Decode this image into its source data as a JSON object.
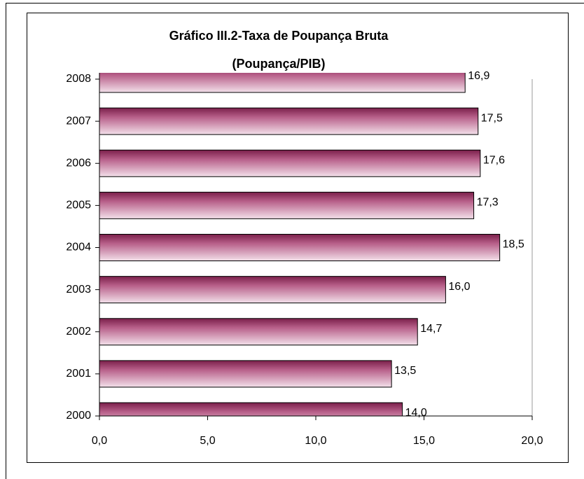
{
  "chart_data": {
    "type": "bar",
    "orientation": "horizontal",
    "title": "Gráfico III.2-Taxa de Poupança Bruta",
    "subtitle": "(Poupança/PIB)",
    "categories": [
      "2000",
      "2001",
      "2002",
      "2003",
      "2004",
      "2005",
      "2006",
      "2007",
      "2008"
    ],
    "values": [
      14.0,
      13.5,
      14.7,
      16.0,
      18.5,
      17.3,
      17.6,
      17.5,
      16.9
    ],
    "value_labels": [
      "14,0",
      "13,5",
      "14,7",
      "16,0",
      "18,5",
      "17,3",
      "17,6",
      "17,5",
      "16,9"
    ],
    "color": "#7a1f4a",
    "xlim": [
      0,
      20
    ],
    "xticks": [
      {
        "value": 0,
        "label": "0,0"
      },
      {
        "value": 5,
        "label": "5,0"
      },
      {
        "value": 10,
        "label": "10,0"
      },
      {
        "value": 15,
        "label": "15,0"
      },
      {
        "value": 20,
        "label": "20,0"
      }
    ]
  }
}
